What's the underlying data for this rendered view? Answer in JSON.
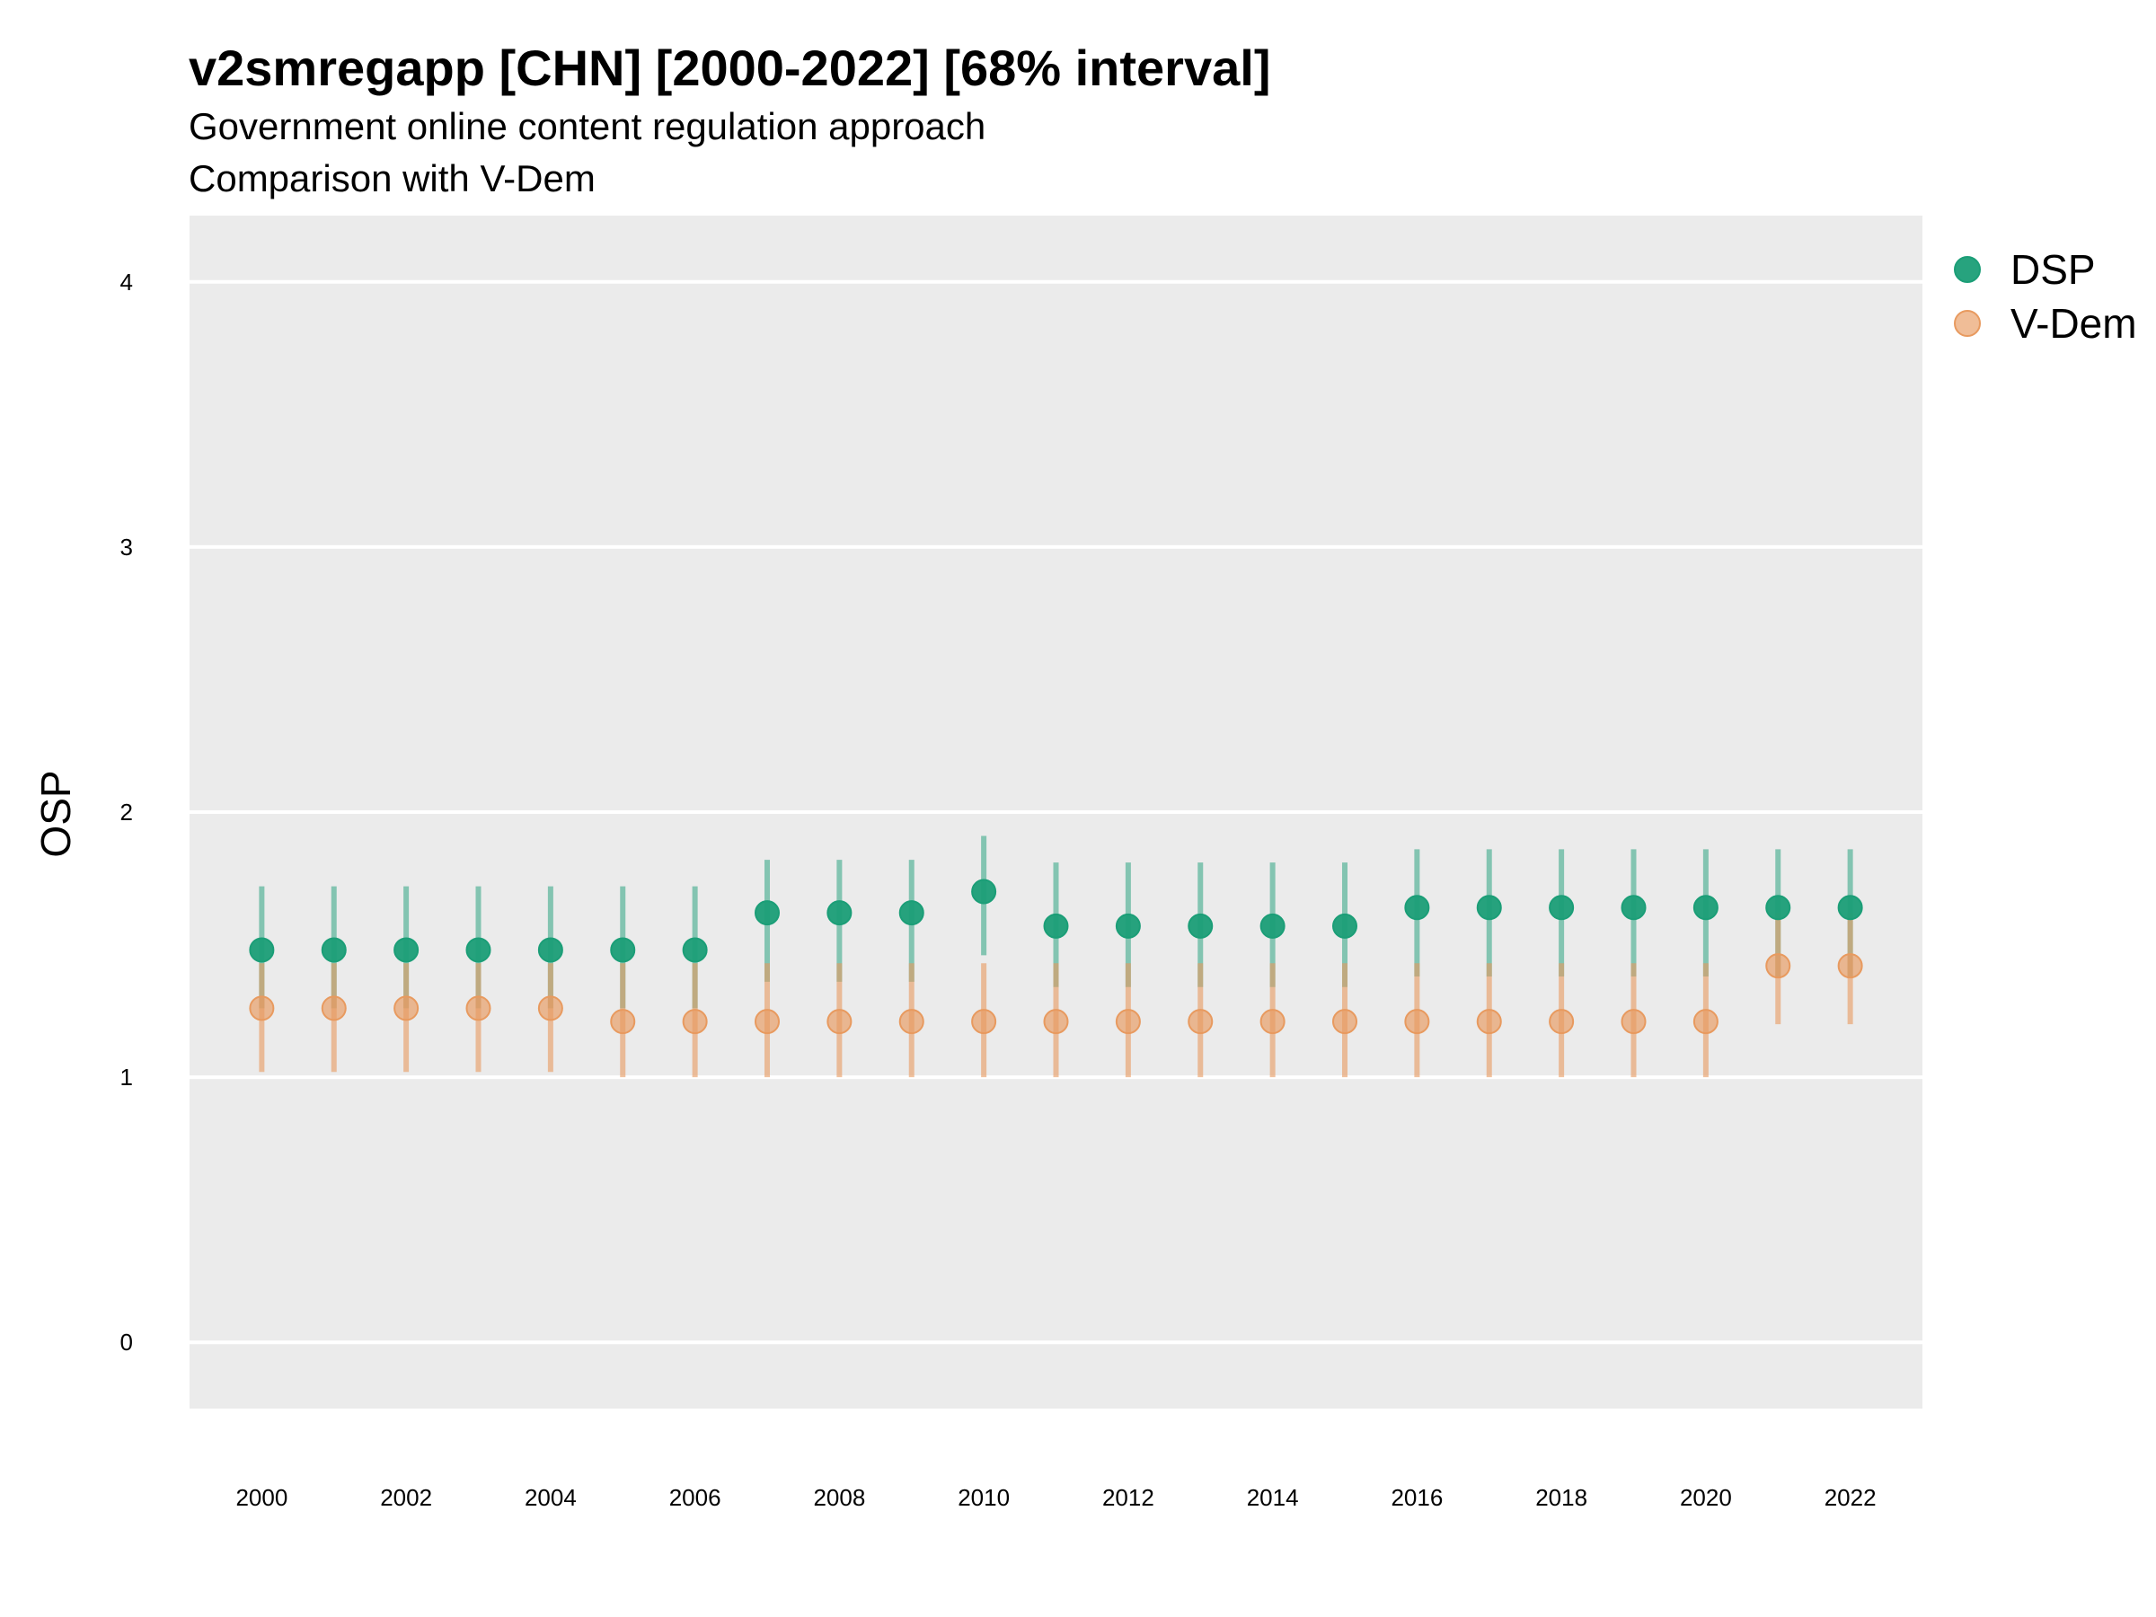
{
  "chart_data": {
    "type": "scatter",
    "title": "v2smregapp [CHN] [2000-2022] [68% interval]",
    "subtitle_line1": "Government online content regulation approach",
    "subtitle_line2": "Comparison with V-Dem",
    "ylabel": "OSP",
    "xlabel": "",
    "ylim": [
      -0.25,
      4.25
    ],
    "yticks": [
      0,
      1,
      2,
      3,
      4
    ],
    "xticks": [
      2000,
      2002,
      2004,
      2006,
      2008,
      2010,
      2012,
      2014,
      2016,
      2018,
      2020,
      2022
    ],
    "grid": true,
    "legend_position": "top-right",
    "x": [
      2000,
      2001,
      2002,
      2003,
      2004,
      2005,
      2006,
      2007,
      2008,
      2009,
      2010,
      2011,
      2012,
      2013,
      2014,
      2015,
      2016,
      2017,
      2018,
      2019,
      2020,
      2021,
      2022
    ],
    "series": [
      {
        "name": "DSP",
        "color": "#1b9e77",
        "values": [
          1.48,
          1.48,
          1.48,
          1.48,
          1.48,
          1.48,
          1.48,
          1.62,
          1.62,
          1.62,
          1.7,
          1.57,
          1.57,
          1.57,
          1.57,
          1.57,
          1.64,
          1.64,
          1.64,
          1.64,
          1.64,
          1.64,
          1.64
        ],
        "lower": [
          1.26,
          1.26,
          1.26,
          1.26,
          1.26,
          1.26,
          1.26,
          1.36,
          1.36,
          1.36,
          1.46,
          1.34,
          1.34,
          1.34,
          1.34,
          1.34,
          1.38,
          1.38,
          1.38,
          1.38,
          1.38,
          1.38,
          1.38
        ],
        "upper": [
          1.72,
          1.72,
          1.72,
          1.72,
          1.72,
          1.72,
          1.72,
          1.82,
          1.82,
          1.82,
          1.91,
          1.81,
          1.81,
          1.81,
          1.81,
          1.81,
          1.86,
          1.86,
          1.86,
          1.86,
          1.86,
          1.86,
          1.86
        ]
      },
      {
        "name": "V-Dem",
        "color": "#e89a5f",
        "values": [
          1.26,
          1.26,
          1.26,
          1.26,
          1.26,
          1.21,
          1.21,
          1.21,
          1.21,
          1.21,
          1.21,
          1.21,
          1.21,
          1.21,
          1.21,
          1.21,
          1.21,
          1.21,
          1.21,
          1.21,
          1.21,
          1.42,
          1.42
        ],
        "lower": [
          1.02,
          1.02,
          1.02,
          1.02,
          1.02,
          1.0,
          1.0,
          1.0,
          1.0,
          1.0,
          1.0,
          1.0,
          1.0,
          1.0,
          1.0,
          1.0,
          1.0,
          1.0,
          1.0,
          1.0,
          1.0,
          1.2,
          1.2
        ],
        "upper": [
          1.43,
          1.43,
          1.43,
          1.43,
          1.43,
          1.43,
          1.43,
          1.43,
          1.43,
          1.43,
          1.43,
          1.43,
          1.43,
          1.43,
          1.43,
          1.43,
          1.43,
          1.43,
          1.43,
          1.43,
          1.43,
          1.62,
          1.62
        ]
      }
    ]
  }
}
